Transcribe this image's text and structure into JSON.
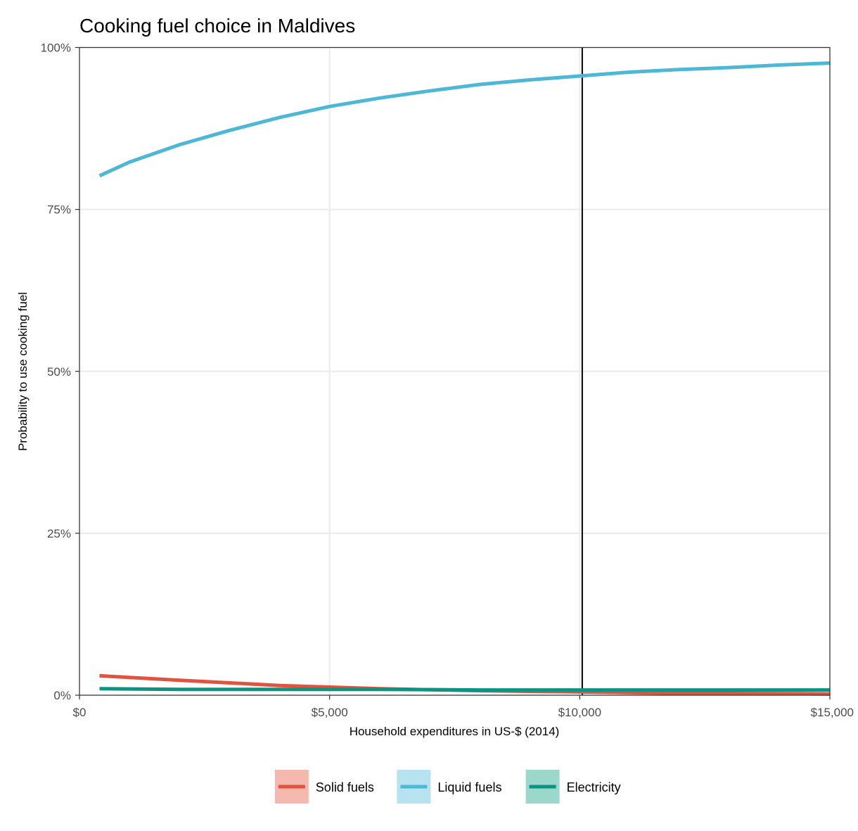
{
  "chart_data": {
    "type": "line",
    "title": "Cooking fuel choice in Maldives",
    "xlabel": "Household expenditures in US-$ (2014)",
    "ylabel": "Probability to use cooking fuel",
    "xlim": [
      0,
      15000
    ],
    "ylim": [
      0,
      100
    ],
    "x_ticks": [
      0,
      5000,
      10000,
      15000
    ],
    "x_tick_labels": [
      "$0",
      "$5,000",
      "$10,000",
      "$15,000"
    ],
    "y_ticks": [
      0,
      25,
      50,
      75,
      100
    ],
    "y_tick_labels": [
      "0%",
      "25%",
      "50%",
      "75%",
      "100%"
    ],
    "vline_x": 10050,
    "grid": true,
    "legend_position": "bottom",
    "series": [
      {
        "name": "Solid fuels",
        "color": "#e0533f",
        "fill": "#f4b8ae",
        "x": [
          400,
          2000,
          4000,
          6000,
          8000,
          10000,
          12000,
          15000
        ],
        "y": [
          3.0,
          2.3,
          1.5,
          1.0,
          0.7,
          0.5,
          0.3,
          0.2
        ]
      },
      {
        "name": "Liquid fuels",
        "color": "#4db8d6",
        "fill": "#b6e3ef",
        "x": [
          400,
          1000,
          2000,
          3000,
          4000,
          5000,
          6000,
          7000,
          8000,
          9000,
          10000,
          11000,
          12000,
          13000,
          14000,
          15000
        ],
        "y": [
          80.2,
          82.3,
          85.0,
          87.2,
          89.2,
          90.9,
          92.2,
          93.3,
          94.3,
          95.0,
          95.6,
          96.2,
          96.6,
          96.9,
          97.3,
          97.6
        ]
      },
      {
        "name": "Electricity",
        "color": "#0a9481",
        "fill": "#9bd8cb",
        "x": [
          400,
          2000,
          4000,
          6000,
          8000,
          10000,
          12000,
          15000
        ],
        "y": [
          1.0,
          0.9,
          0.9,
          0.9,
          0.8,
          0.8,
          0.8,
          0.8
        ]
      }
    ]
  }
}
